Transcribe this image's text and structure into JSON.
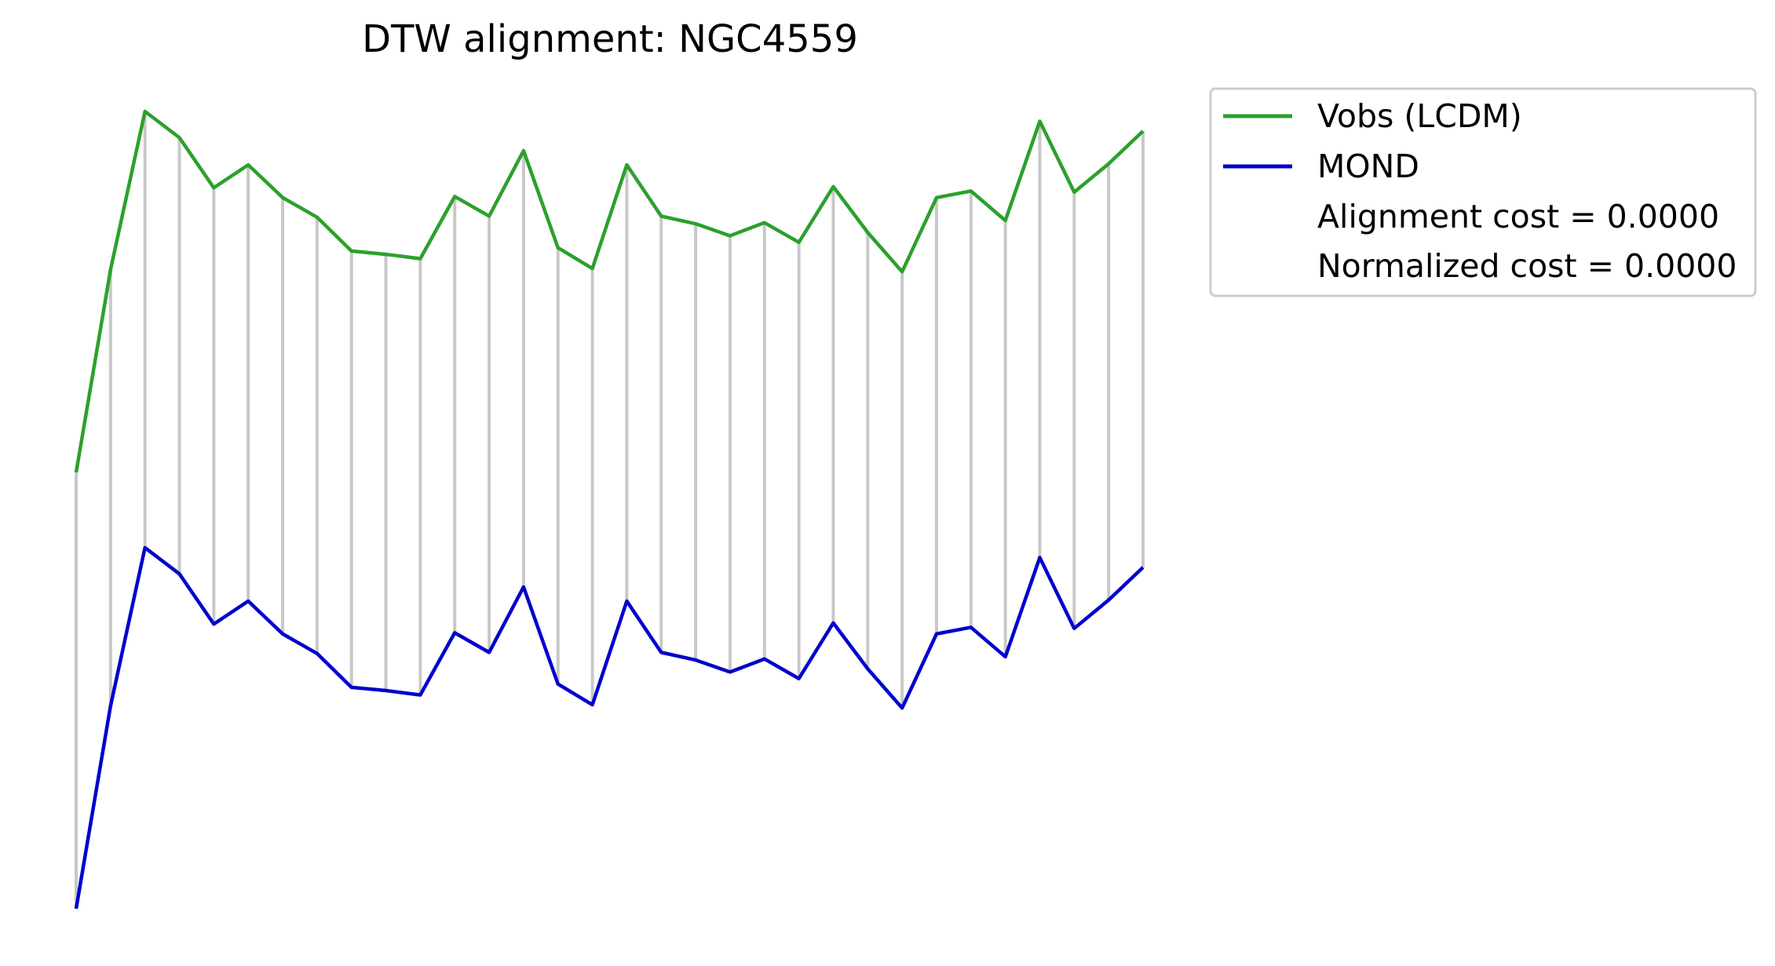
{
  "chart_data": {
    "type": "line",
    "title": "DTW alignment: NGC4559",
    "xlabel": "",
    "ylabel": "",
    "axes_visible": false,
    "grid": false,
    "legend_position": "upper right, outside plot",
    "x": [
      1,
      2,
      3,
      4,
      5,
      6,
      7,
      8,
      9,
      10,
      11,
      12,
      13,
      14,
      15,
      16,
      17,
      18,
      19,
      20,
      21,
      22,
      23,
      24,
      25,
      26,
      27,
      28,
      29,
      30,
      31,
      32
    ],
    "series": [
      {
        "name": "Vobs (LCDM)",
        "color": "#2ca02c",
        "values": [
          -7.74,
          -5.88,
          -4.43,
          -4.67,
          -5.13,
          -4.92,
          -5.22,
          -5.4,
          -5.71,
          -5.74,
          -5.78,
          -5.21,
          -5.39,
          -4.79,
          -5.68,
          -5.87,
          -4.92,
          -5.39,
          -5.46,
          -5.57,
          -5.45,
          -5.63,
          -5.12,
          -5.54,
          -5.9,
          -5.22,
          -5.16,
          -5.43,
          -4.52,
          -5.17,
          -4.91,
          -4.61
        ]
      },
      {
        "name": "MOND",
        "color": "#0000cc",
        "values": [
          -11.74,
          -9.88,
          -8.43,
          -8.67,
          -9.13,
          -8.92,
          -9.22,
          -9.4,
          -9.71,
          -9.74,
          -9.78,
          -9.21,
          -9.39,
          -8.79,
          -9.68,
          -9.87,
          -8.92,
          -9.39,
          -9.46,
          -9.57,
          -9.45,
          -9.63,
          -9.12,
          -9.54,
          -9.9,
          -9.22,
          -9.16,
          -9.43,
          -8.52,
          -9.17,
          -8.91,
          -8.61
        ]
      }
    ],
    "alignment": {
      "color": "#c8c8c8",
      "pairs": [
        [
          0,
          0
        ],
        [
          1,
          1
        ],
        [
          2,
          2
        ],
        [
          3,
          3
        ],
        [
          4,
          4
        ],
        [
          5,
          5
        ],
        [
          6,
          6
        ],
        [
          7,
          7
        ],
        [
          8,
          8
        ],
        [
          9,
          9
        ],
        [
          10,
          10
        ],
        [
          11,
          11
        ],
        [
          12,
          12
        ],
        [
          13,
          13
        ],
        [
          14,
          14
        ],
        [
          15,
          15
        ],
        [
          16,
          16
        ],
        [
          17,
          17
        ],
        [
          18,
          18
        ],
        [
          19,
          19
        ],
        [
          20,
          20
        ],
        [
          21,
          21
        ],
        [
          22,
          22
        ],
        [
          23,
          23
        ],
        [
          24,
          24
        ],
        [
          25,
          25
        ],
        [
          26,
          26
        ],
        [
          27,
          27
        ],
        [
          28,
          28
        ],
        [
          29,
          29
        ],
        [
          30,
          30
        ],
        [
          31,
          31
        ]
      ]
    },
    "xlim": [
      1,
      32
    ],
    "ylim": [
      -11.74,
      -4.43
    ],
    "legend": [
      {
        "label": "Vobs (LCDM)",
        "color": "#2ca02c",
        "has_line": true
      },
      {
        "label": "MOND",
        "color": "#0000cc",
        "has_line": true
      },
      {
        "label": "Alignment cost = 0.0000",
        "color": "",
        "has_line": false
      },
      {
        "label": "Normalized cost = 0.0000",
        "color": "",
        "has_line": false
      }
    ]
  }
}
